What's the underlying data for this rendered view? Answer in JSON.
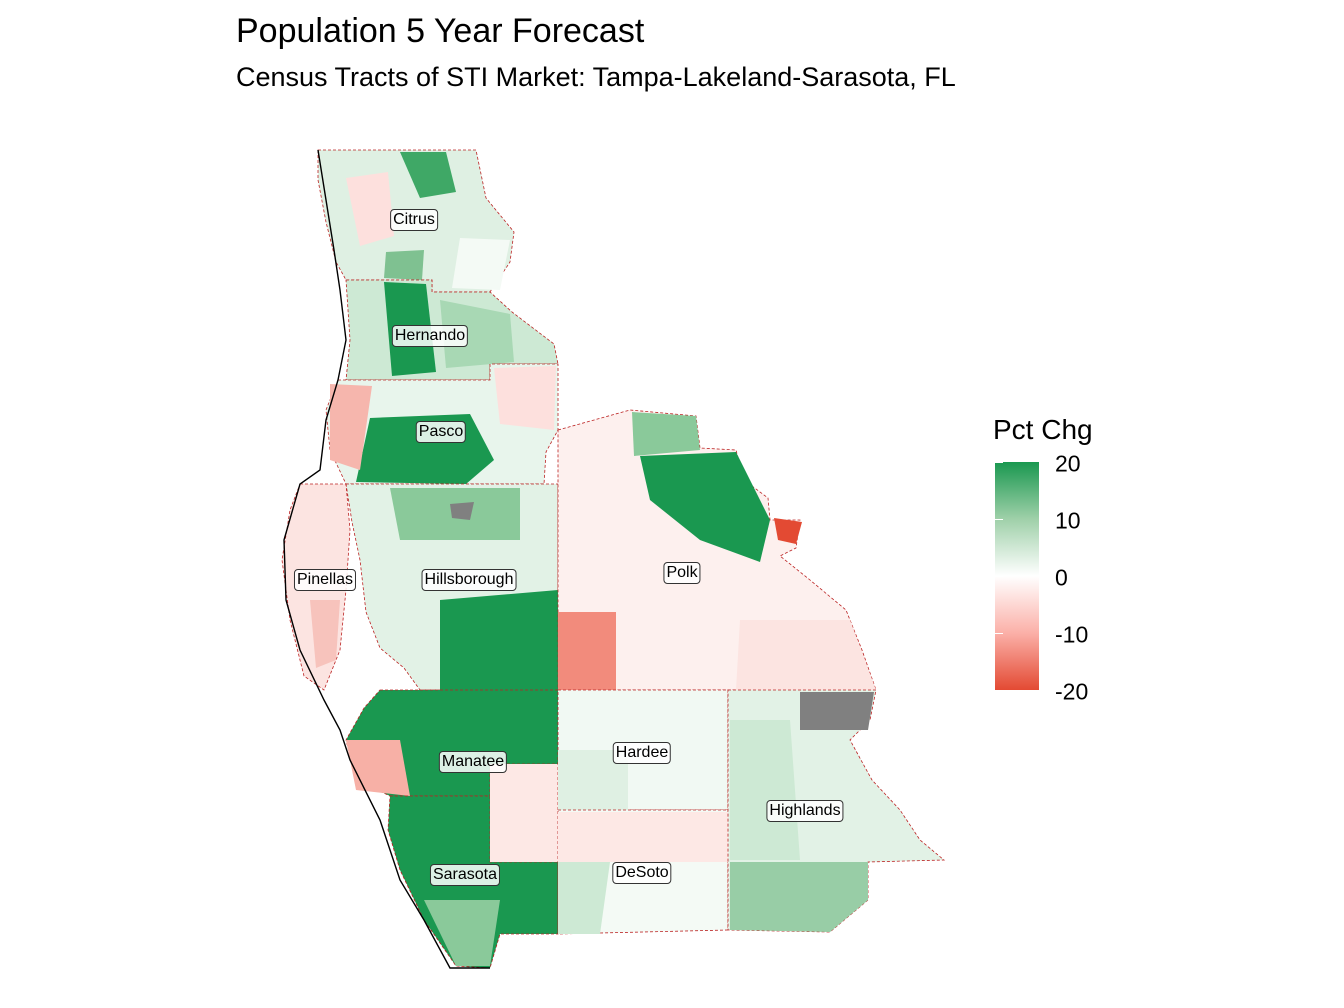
{
  "title": "Population 5 Year Forecast",
  "subtitle": "Census Tracts of STI Market: Tampa-Lakeland-Sarasota, FL",
  "legend": {
    "title": "Pct Chg",
    "ticks": [
      "20",
      "10",
      "0",
      "-10",
      "-20"
    ],
    "range": [
      -20,
      20
    ],
    "colors": {
      "high": "#1a9850",
      "mid": "#ffffff",
      "low": "#e34a33",
      "missing": "#808080"
    }
  },
  "counties": [
    {
      "name": "Citrus",
      "pct_chg": 2
    },
    {
      "name": "Hernando",
      "pct_chg": 7
    },
    {
      "name": "Pasco",
      "pct_chg": 5
    },
    {
      "name": "Pinellas",
      "pct_chg": -4
    },
    {
      "name": "Hillsborough",
      "pct_chg": 6
    },
    {
      "name": "Polk",
      "pct_chg": 3
    },
    {
      "name": "Manatee",
      "pct_chg": 14
    },
    {
      "name": "Hardee",
      "pct_chg": 0
    },
    {
      "name": "Highlands",
      "pct_chg": 3
    },
    {
      "name": "Sarasota",
      "pct_chg": 12
    },
    {
      "name": "DeSoto",
      "pct_chg": 1
    }
  ]
}
